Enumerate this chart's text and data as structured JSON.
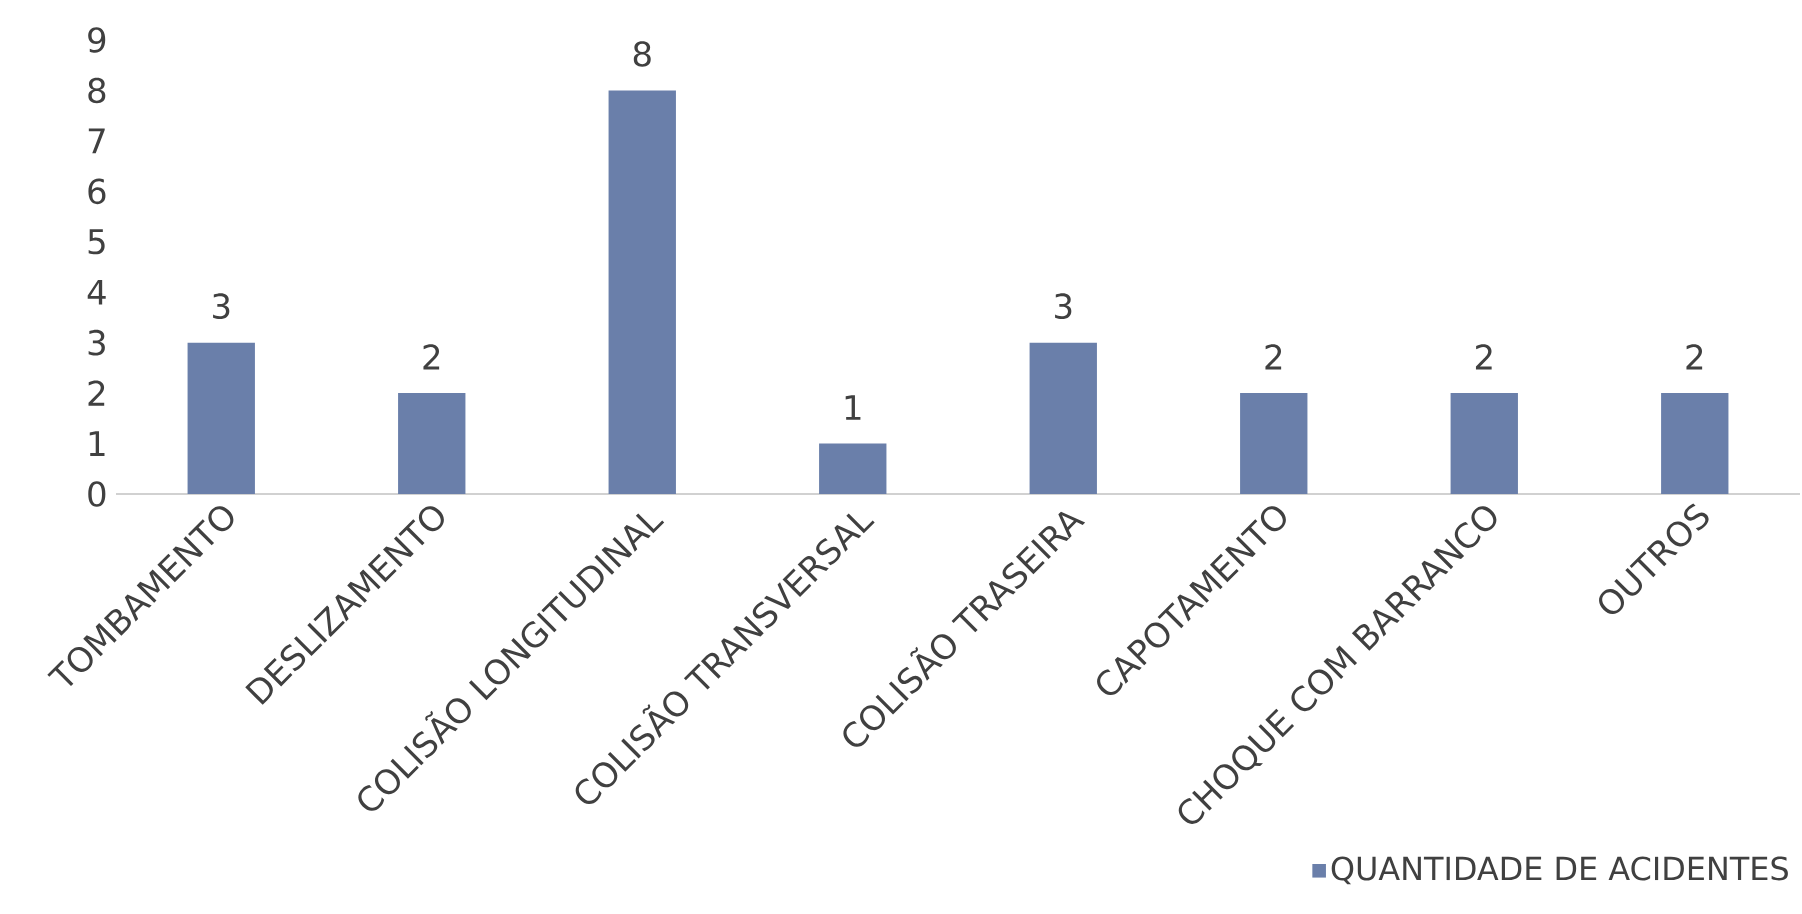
{
  "chart_data": {
    "type": "bar",
    "categories": [
      "TOMBAMENTO",
      "DESLIZAMENTO",
      "COLISÃO LONGITUDINAL",
      "COLISÃO TRANSVERSAL",
      "COLISÃO TRASEIRA",
      "CAPOTAMENTO",
      "CHOQUE COM BARRANCO",
      "OUTROS"
    ],
    "series": [
      {
        "name": "QUANTIDADE DE ACIDENTES",
        "color": "#6a7faa",
        "values": [
          3,
          2,
          8,
          1,
          3,
          2,
          2,
          2
        ]
      }
    ],
    "ylim": [
      0,
      9
    ],
    "yticks": [
      0,
      1,
      2,
      3,
      4,
      5,
      6,
      7,
      8,
      9
    ],
    "data_labels": true,
    "legend": "bottom right"
  }
}
